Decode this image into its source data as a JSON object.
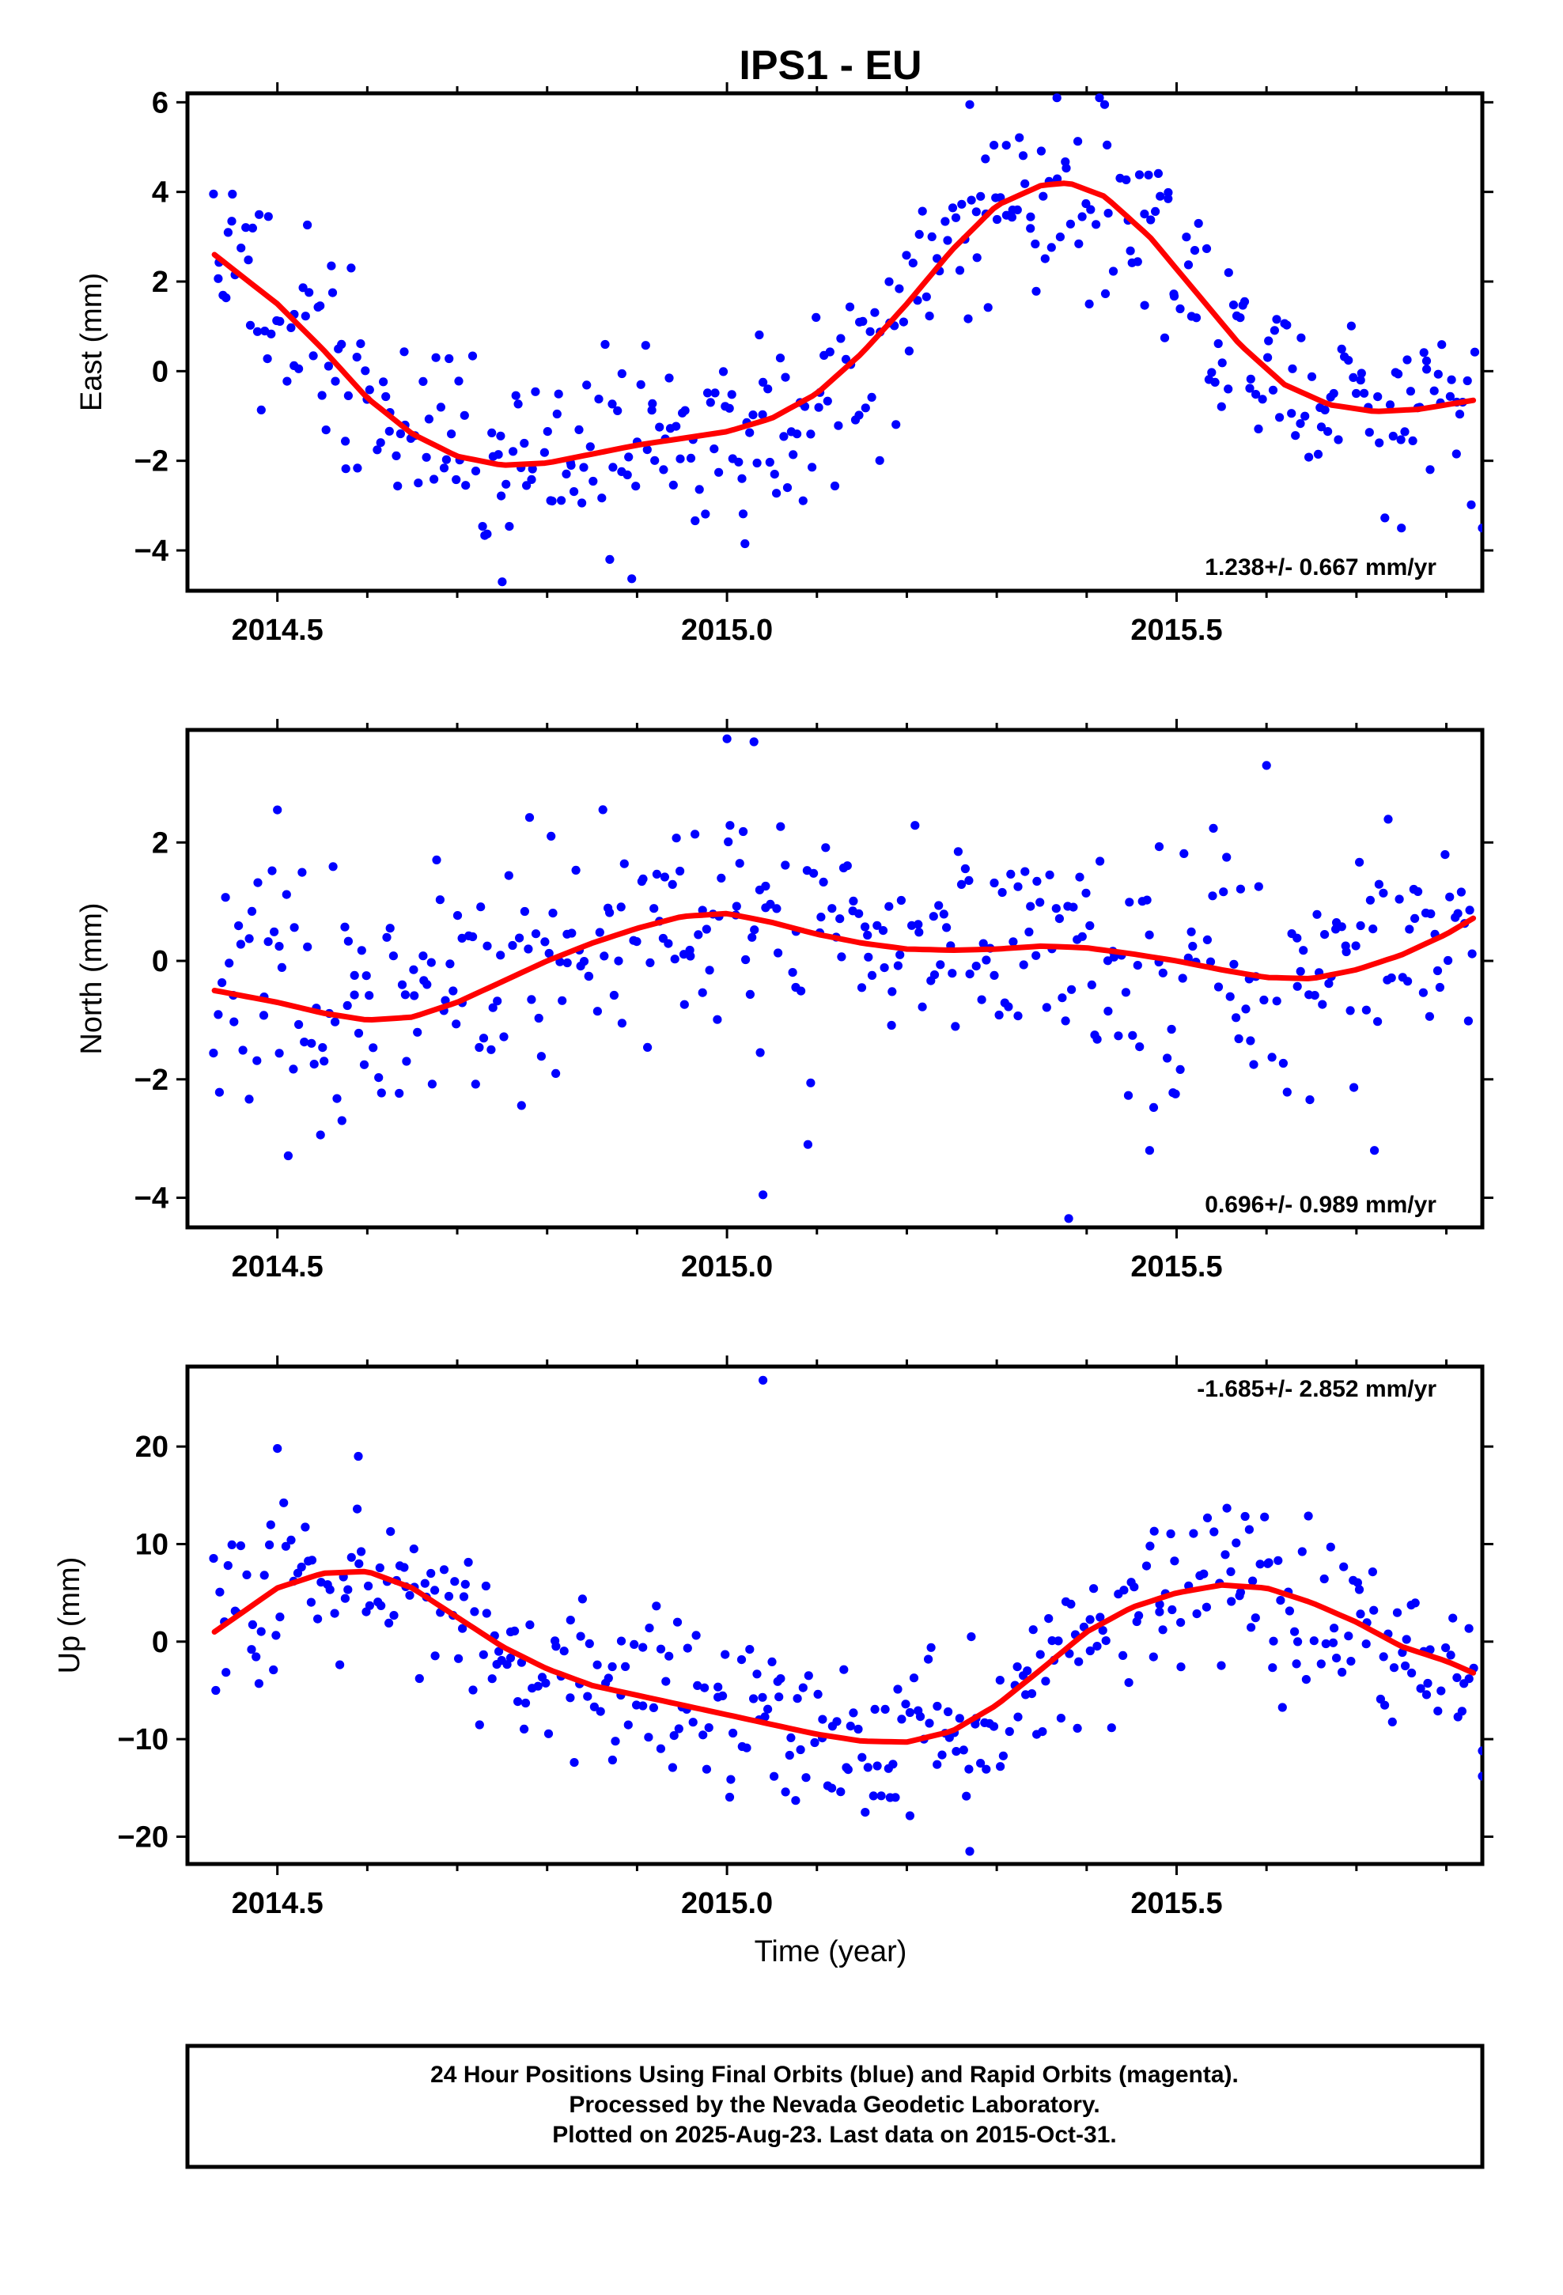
{
  "title": "IPS1 - EU",
  "xlabel": "Time (year)",
  "caption": [
    "24 Hour Positions Using Final Orbits (blue) and Rapid Orbits (magenta).",
    "Processed by the Nevada Geodetic Laboratory.",
    "Plotted on 2025-Aug-23. Last data on 2015-Oct-31."
  ],
  "colors": {
    "points": "#0000ff",
    "fit": "#ff0000",
    "axes": "#000000"
  },
  "chart_data": [
    {
      "type": "scatter",
      "name": "East",
      "ylabel": "East (mm)",
      "rate_label": "1.238+/- 0.667 mm/yr",
      "xlim": [
        2014.4,
        2015.84
      ],
      "ylim": [
        -4.9,
        6.2
      ],
      "xticks": [
        2014.5,
        2015.0,
        2015.5
      ],
      "xtick_labels": [
        "2014.5",
        "2015.0",
        "2015.5"
      ],
      "yticks": [
        -4,
        -2,
        0,
        2,
        4,
        6
      ],
      "ytick_labels": [
        "−4",
        "−2",
        "0",
        "2",
        "4",
        "6"
      ],
      "fit": {
        "x": [
          2014.43,
          2014.5,
          2014.55,
          2014.6,
          2014.65,
          2014.7,
          2014.75,
          2014.8,
          2014.85,
          2014.9,
          2014.95,
          2015.0,
          2015.05,
          2015.1,
          2015.15,
          2015.2,
          2015.25,
          2015.3,
          2015.35,
          2015.38,
          2015.42,
          2015.47,
          2015.52,
          2015.57,
          2015.62,
          2015.67,
          2015.72,
          2015.77,
          2015.83
        ],
        "y": [
          2.6,
          1.5,
          0.5,
          -0.6,
          -1.4,
          -1.9,
          -2.1,
          -2.05,
          -1.85,
          -1.65,
          -1.5,
          -1.35,
          -1.05,
          -0.5,
          0.4,
          1.5,
          2.7,
          3.7,
          4.15,
          4.2,
          3.9,
          3.0,
          1.8,
          0.6,
          -0.3,
          -0.75,
          -0.9,
          -0.85,
          -0.65
        ]
      },
      "points": {
        "seed": 11,
        "n": 420,
        "noise_sd": 1.05,
        "outliers": [
          [
            2014.45,
            3.95
          ],
          [
            2014.49,
            3.45
          ],
          [
            2014.56,
            2.35
          ],
          [
            2014.75,
            -4.7
          ],
          [
            2015.02,
            -3.85
          ],
          [
            2015.27,
            5.95
          ],
          [
            2015.42,
            5.95
          ],
          [
            2015.75,
            -3.5
          ],
          [
            2015.84,
            -3.5
          ]
        ]
      }
    },
    {
      "type": "scatter",
      "name": "North",
      "ylabel": "North (mm)",
      "rate_label": "0.696+/- 0.989 mm/yr",
      "xlim": [
        2014.4,
        2015.84
      ],
      "ylim": [
        -4.5,
        3.9
      ],
      "xticks": [
        2014.5,
        2015.0,
        2015.5
      ],
      "xtick_labels": [
        "2014.5",
        "2015.0",
        "2015.5"
      ],
      "yticks": [
        -4,
        -2,
        0,
        2
      ],
      "ytick_labels": [
        "−4",
        "−2",
        "0",
        "2"
      ],
      "fit": {
        "x": [
          2014.43,
          2014.5,
          2014.55,
          2014.6,
          2014.65,
          2014.7,
          2014.75,
          2014.8,
          2014.85,
          2014.9,
          2014.95,
          2015.0,
          2015.05,
          2015.1,
          2015.15,
          2015.2,
          2015.25,
          2015.3,
          2015.35,
          2015.4,
          2015.45,
          2015.5,
          2015.55,
          2015.6,
          2015.65,
          2015.7,
          2015.75,
          2015.8,
          2015.83
        ],
        "y": [
          -0.5,
          -0.7,
          -0.88,
          -1.0,
          -0.95,
          -0.7,
          -0.35,
          0.0,
          0.3,
          0.55,
          0.75,
          0.8,
          0.65,
          0.45,
          0.3,
          0.2,
          0.18,
          0.2,
          0.25,
          0.22,
          0.12,
          0.0,
          -0.15,
          -0.28,
          -0.3,
          -0.15,
          0.1,
          0.45,
          0.72
        ]
      },
      "points": {
        "seed": 23,
        "n": 420,
        "noise_sd": 1.0,
        "outliers": [
          [
            2014.5,
            2.55
          ],
          [
            2015.0,
            3.75
          ],
          [
            2015.03,
            3.7
          ],
          [
            2015.04,
            -3.95
          ],
          [
            2015.09,
            -3.1
          ],
          [
            2015.38,
            -4.35
          ],
          [
            2015.47,
            -3.2
          ],
          [
            2015.6,
            3.3
          ],
          [
            2015.72,
            -3.2
          ]
        ]
      }
    },
    {
      "type": "scatter",
      "name": "Up",
      "ylabel": "Up (mm)",
      "rate_label": "-1.685+/- 2.852 mm/yr",
      "xlim": [
        2014.4,
        2015.84
      ],
      "ylim": [
        -22.8,
        28.2
      ],
      "xticks": [
        2014.5,
        2015.0,
        2015.5
      ],
      "xtick_labels": [
        "2014.5",
        "2015.0",
        "2015.5"
      ],
      "yticks": [
        -20,
        -10,
        0,
        10,
        20
      ],
      "ytick_labels": [
        "−20",
        "−10",
        "0",
        "10",
        "20"
      ],
      "fit": {
        "x": [
          2014.43,
          2014.5,
          2014.55,
          2014.6,
          2014.65,
          2014.7,
          2014.75,
          2014.8,
          2014.85,
          2014.9,
          2014.95,
          2015.0,
          2015.05,
          2015.1,
          2015.15,
          2015.2,
          2015.25,
          2015.3,
          2015.35,
          2015.4,
          2015.45,
          2015.5,
          2015.55,
          2015.6,
          2015.65,
          2015.7,
          2015.75,
          2015.8,
          2015.83
        ],
        "y": [
          1.0,
          5.5,
          7.0,
          7.2,
          5.5,
          2.5,
          -0.5,
          -2.8,
          -4.5,
          -5.5,
          -6.5,
          -7.5,
          -8.5,
          -9.5,
          -10.2,
          -10.3,
          -9.2,
          -6.5,
          -2.8,
          1.0,
          3.5,
          5.0,
          5.8,
          5.5,
          4.0,
          2.0,
          -0.5,
          -2.0,
          -3.2
        ]
      },
      "points": {
        "seed": 37,
        "n": 420,
        "noise_sd": 4.0,
        "outliers": [
          [
            2014.5,
            19.8
          ],
          [
            2014.59,
            19.0
          ],
          [
            2015.04,
            26.8
          ],
          [
            2015.27,
            -21.5
          ],
          [
            2015.84,
            -13.8
          ],
          [
            2015.84,
            -11.2
          ]
        ]
      }
    }
  ]
}
